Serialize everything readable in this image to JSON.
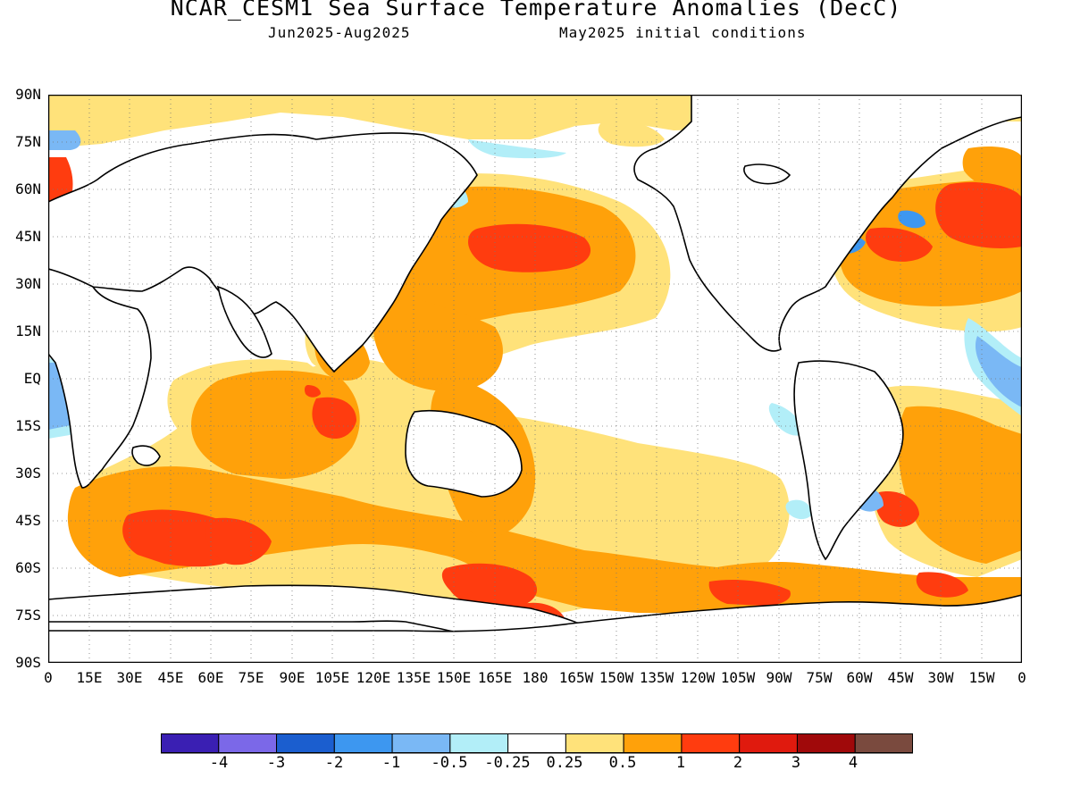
{
  "title": "NCAR_CESM1 Sea Surface Temperature Anomalies (DecC)",
  "subtitle_left": "Jun2025-Aug2025",
  "subtitle_right": "May2025 initial conditions",
  "lat_labels": [
    "90N",
    "75N",
    "60N",
    "45N",
    "30N",
    "15N",
    "EQ",
    "15S",
    "30S",
    "45S",
    "60S",
    "75S",
    "90S"
  ],
  "lon_labels": [
    "0",
    "15E",
    "30E",
    "45E",
    "60E",
    "75E",
    "90E",
    "105E",
    "120E",
    "135E",
    "150E",
    "165E",
    "180",
    "165W",
    "150W",
    "135W",
    "120W",
    "105W",
    "90W",
    "75W",
    "60W",
    "45W",
    "30W",
    "15W",
    "0"
  ],
  "colorbar": {
    "colors": [
      "#3a1fb3",
      "#7b68e8",
      "#1b5ecf",
      "#3d97f0",
      "#7ab8f5",
      "#b2eef8",
      "#ffffff",
      "#ffe27a",
      "#ffa10a",
      "#ff3c0f",
      "#e01a0e",
      "#a0090a",
      "#7a4a3e"
    ],
    "labels": [
      "-4",
      "-3",
      "-2",
      "-1",
      "-0.5",
      "-0.25",
      "0.25",
      "0.5",
      "1",
      "2",
      "3",
      "4"
    ]
  },
  "map": {
    "colors": {
      "warm_weak": "#ffe27a",
      "warm_mod": "#ffa10a",
      "warm_strong": "#ff3c0f",
      "cool_weak": "#b2eef8",
      "cool_mod": "#7ab8f5",
      "cool_strong": "#3d97f0",
      "cool_vstrong": "#1b5ecf",
      "land_outline": "#000000"
    }
  }
}
